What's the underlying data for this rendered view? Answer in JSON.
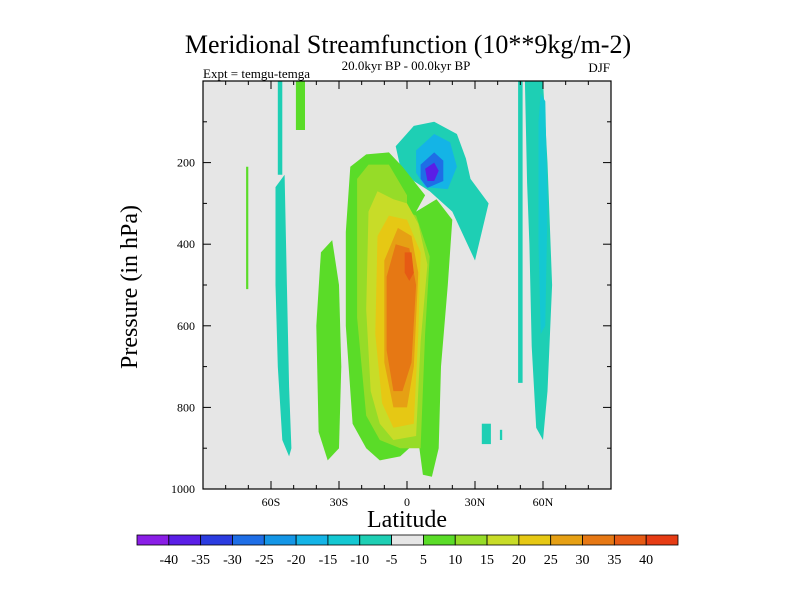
{
  "chart_data": {
    "type": "heatmap",
    "title": "Meridional Streamfunction (10**9kg/m-2)",
    "subtitle": "20.0kyr BP - 00.0kyr BP",
    "left_label": "Expt = temgu-temga",
    "season": "DJF",
    "xlabel": "Latitude",
    "ylabel": "Pressure (in hPa)",
    "x_ticks": [
      "60S",
      "30S",
      "0",
      "30N",
      "60N"
    ],
    "x_tick_values": [
      -60,
      -30,
      0,
      30,
      60
    ],
    "xlim": [
      -90,
      90
    ],
    "y_ticks": [
      "200",
      "400",
      "600",
      "800",
      "1000"
    ],
    "y_tick_values": [
      200,
      400,
      600,
      800,
      1000
    ],
    "ylim": [
      0,
      1000
    ],
    "colorbar_levels": [
      "-40",
      "-35",
      "-30",
      "-25",
      "-20",
      "-15",
      "-10",
      "-5",
      "5",
      "10",
      "15",
      "20",
      "25",
      "30",
      "35",
      "40"
    ],
    "colorbar_colors": [
      "#8a1ee6",
      "#5a1ee6",
      "#2b3ce0",
      "#1e6ee6",
      "#1496e6",
      "#14b4e6",
      "#14c8d2",
      "#1ecfb4",
      "#e6e6e6",
      "#5adc28",
      "#96dc28",
      "#c8dc28",
      "#e6c814",
      "#e6a014",
      "#e67814",
      "#e65a14",
      "#e63c14"
    ],
    "background_color": "#e6e6e6",
    "contour_regions": [
      {
        "name": "sh-upper-cyan-strip",
        "level": "-5",
        "points": [
          [
            -57,
            0
          ],
          [
            -55,
            0
          ],
          [
            -55,
            230
          ],
          [
            -57,
            230
          ]
        ]
      },
      {
        "name": "sh-upper-green-strip",
        "level": "5",
        "points": [
          [
            -49,
            0
          ],
          [
            -45,
            0
          ],
          [
            -45,
            120
          ],
          [
            -49,
            120
          ]
        ]
      },
      {
        "name": "sh-cyan-column",
        "level": "-5",
        "points": [
          [
            -58,
            260
          ],
          [
            -54,
            230
          ],
          [
            -53,
            500
          ],
          [
            -52,
            750
          ],
          [
            -51,
            900
          ],
          [
            -52,
            920
          ],
          [
            -55,
            880
          ],
          [
            -57,
            700
          ],
          [
            -58,
            500
          ]
        ]
      },
      {
        "name": "far-south-thin-strip",
        "level": "5",
        "points": [
          [
            -71,
            210
          ],
          [
            -70,
            210
          ],
          [
            -70,
            510
          ],
          [
            -71,
            510
          ]
        ]
      },
      {
        "name": "sh-green-column",
        "level": "5",
        "points": [
          [
            -38,
            420
          ],
          [
            -33,
            390
          ],
          [
            -30,
            500
          ],
          [
            -29,
            700
          ],
          [
            -30,
            900
          ],
          [
            -35,
            930
          ],
          [
            -39,
            860
          ],
          [
            -40,
            600
          ]
        ]
      },
      {
        "name": "upper-cyan-cell",
        "level": "-5",
        "points": [
          [
            -5,
            160
          ],
          [
            3,
            110
          ],
          [
            12,
            100
          ],
          [
            22,
            130
          ],
          [
            26,
            190
          ],
          [
            28,
            240
          ],
          [
            36,
            300
          ],
          [
            30,
            440
          ],
          [
            20,
            320
          ],
          [
            10,
            270
          ],
          [
            3,
            245
          ],
          [
            -3,
            210
          ]
        ]
      },
      {
        "name": "upper-blue-cell",
        "level": "-15",
        "points": [
          [
            4,
            170
          ],
          [
            12,
            130
          ],
          [
            19,
            150
          ],
          [
            22,
            210
          ],
          [
            18,
            265
          ],
          [
            8,
            260
          ],
          [
            4,
            225
          ]
        ]
      },
      {
        "name": "upper-dark-blue-cell",
        "level": "-25",
        "points": [
          [
            6,
            205
          ],
          [
            12,
            175
          ],
          [
            16,
            195
          ],
          [
            16,
            245
          ],
          [
            9,
            262
          ],
          [
            6,
            240
          ]
        ]
      },
      {
        "name": "upper-core-cell",
        "level": "-35",
        "points": [
          [
            8,
            215
          ],
          [
            12,
            200
          ],
          [
            14,
            220
          ],
          [
            12,
            245
          ],
          [
            9,
            245
          ]
        ]
      },
      {
        "name": "green-core",
        "level": "5",
        "points": [
          [
            -27,
            370
          ],
          [
            -25,
            210
          ],
          [
            -18,
            180
          ],
          [
            -8,
            175
          ],
          [
            -2,
            210
          ],
          [
            8,
            280
          ],
          [
            4,
            320
          ],
          [
            13,
            290
          ],
          [
            20,
            340
          ],
          [
            18,
            500
          ],
          [
            15,
            700
          ],
          [
            14,
            900
          ],
          [
            11,
            970
          ],
          [
            7,
            965
          ],
          [
            5,
            880
          ],
          [
            -3,
            920
          ],
          [
            -12,
            930
          ],
          [
            -18,
            900
          ],
          [
            -24,
            840
          ],
          [
            -27,
            600
          ]
        ]
      },
      {
        "name": "green-yellow-core",
        "level": "10",
        "points": [
          [
            -22,
            240
          ],
          [
            -17,
            205
          ],
          [
            -8,
            205
          ],
          [
            0,
            280
          ],
          [
            0,
            320
          ],
          [
            4,
            330
          ],
          [
            10,
            430
          ],
          [
            8,
            620
          ],
          [
            6,
            900
          ],
          [
            -3,
            900
          ],
          [
            -12,
            880
          ],
          [
            -18,
            820
          ],
          [
            -22,
            580
          ]
        ]
      },
      {
        "name": "yellow-core",
        "level": "15",
        "points": [
          [
            -17,
            320
          ],
          [
            -13,
            270
          ],
          [
            -6,
            290
          ],
          [
            0,
            300
          ],
          [
            5,
            350
          ],
          [
            9,
            450
          ],
          [
            6,
            640
          ],
          [
            4,
            870
          ],
          [
            -6,
            880
          ],
          [
            -12,
            840
          ],
          [
            -16,
            760
          ],
          [
            -18,
            560
          ]
        ]
      },
      {
        "name": "gold-core",
        "level": "20",
        "points": [
          [
            -13,
            380
          ],
          [
            -8,
            330
          ],
          [
            0,
            340
          ],
          [
            6,
            420
          ],
          [
            5,
            620
          ],
          [
            3,
            840
          ],
          [
            -6,
            850
          ],
          [
            -11,
            790
          ],
          [
            -14,
            620
          ]
        ]
      },
      {
        "name": "amber-core",
        "level": "25",
        "points": [
          [
            -10,
            440
          ],
          [
            -4,
            360
          ],
          [
            2,
            380
          ],
          [
            5,
            470
          ],
          [
            3,
            700
          ],
          [
            0,
            800
          ],
          [
            -6,
            800
          ],
          [
            -10,
            690
          ]
        ]
      },
      {
        "name": "orange-core",
        "level": "30",
        "points": [
          [
            -9,
            480
          ],
          [
            -5,
            400
          ],
          [
            1,
            410
          ],
          [
            4,
            500
          ],
          [
            2,
            690
          ],
          [
            -2,
            760
          ],
          [
            -6,
            760
          ],
          [
            -9,
            660
          ]
        ]
      },
      {
        "name": "orange-peak",
        "level": "35",
        "points": [
          [
            -1,
            420
          ],
          [
            2,
            420
          ],
          [
            3,
            470
          ],
          [
            1,
            490
          ],
          [
            -1,
            470
          ]
        ]
      },
      {
        "name": "nh-small-cyan-blob",
        "level": "-5",
        "points": [
          [
            33,
            840
          ],
          [
            37,
            840
          ],
          [
            37,
            890
          ],
          [
            33,
            890
          ]
        ]
      },
      {
        "name": "nh-tiny-cyan-blob",
        "level": "-5",
        "points": [
          [
            41,
            855
          ],
          [
            42,
            855
          ],
          [
            42,
            880
          ],
          [
            41,
            880
          ]
        ]
      },
      {
        "name": "nh-cyan-wide-column",
        "level": "-5",
        "points": [
          [
            52,
            0
          ],
          [
            60,
            0
          ],
          [
            62,
            200
          ],
          [
            64,
            500
          ],
          [
            62,
            760
          ],
          [
            60,
            880
          ],
          [
            57,
            850
          ],
          [
            55,
            650
          ],
          [
            54,
            400
          ],
          [
            53,
            250
          ]
        ]
      },
      {
        "name": "nh-blue-inner",
        "level": "-10",
        "points": [
          [
            59,
            30
          ],
          [
            61,
            50
          ],
          [
            62,
            300
          ],
          [
            61,
            600
          ],
          [
            59,
            620
          ],
          [
            58,
            400
          ],
          [
            58,
            100
          ]
        ]
      },
      {
        "name": "nh-cyan-thin-strip",
        "level": "-5",
        "points": [
          [
            49,
            0
          ],
          [
            51,
            0
          ],
          [
            51,
            740
          ],
          [
            49,
            740
          ]
        ]
      }
    ]
  }
}
